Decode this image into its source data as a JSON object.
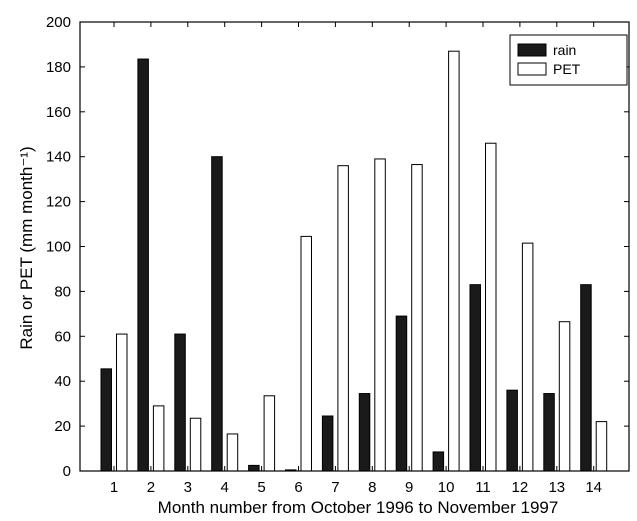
{
  "chart_data": {
    "type": "bar",
    "categories": [
      "1",
      "2",
      "3",
      "4",
      "5",
      "6",
      "7",
      "8",
      "9",
      "10",
      "11",
      "12",
      "13",
      "14"
    ],
    "series": [
      {
        "name": "rain",
        "color": "#1a1a1a",
        "values": [
          45.5,
          183.5,
          61,
          140,
          2.5,
          0.5,
          24.5,
          34.5,
          69,
          8.5,
          83,
          36,
          34.5,
          83
        ]
      },
      {
        "name": "PET",
        "color": "#ffffff",
        "values": [
          61,
          29,
          23.5,
          16.5,
          33.5,
          104.5,
          136,
          139,
          136.5,
          187,
          146,
          101.5,
          66.5,
          22
        ]
      }
    ],
    "xlabel": "Month number from October 1996 to November 1997",
    "ylabel": "Rain or PET (mm month⁻¹)",
    "ylim": [
      0,
      200
    ],
    "yticks": [
      0,
      20,
      40,
      60,
      80,
      100,
      120,
      140,
      160,
      180,
      200
    ],
    "legend_position": "top-right",
    "grid": false
  }
}
